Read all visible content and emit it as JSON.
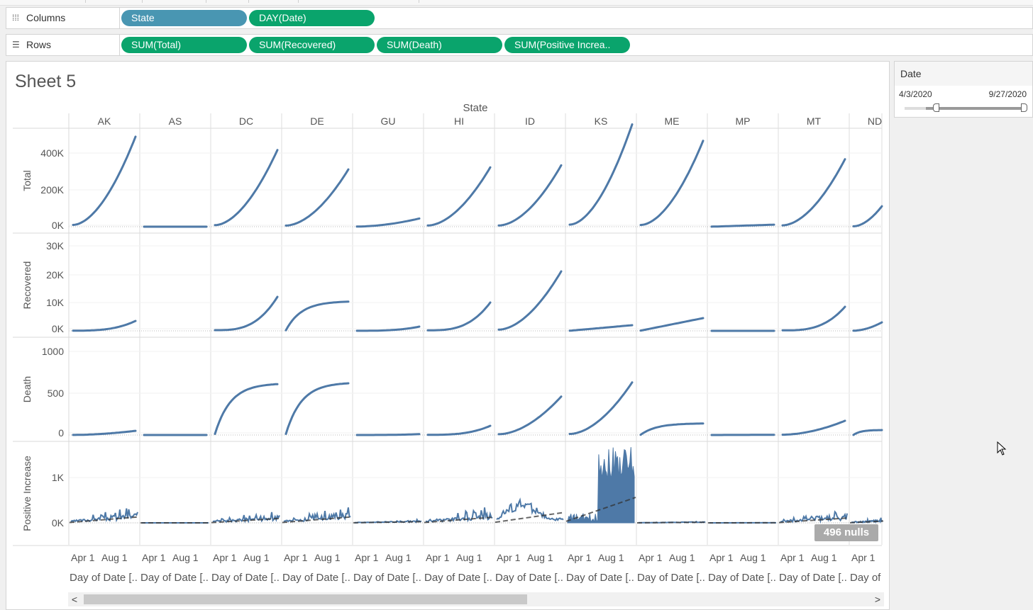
{
  "shelves": {
    "columns": {
      "label": "Columns",
      "icon": "columns-icon",
      "pills": [
        {
          "label": "State",
          "color": "#4996b2"
        },
        {
          "label": "DAY(Date)",
          "color": "#0aa46c"
        }
      ]
    },
    "rows": {
      "label": "Rows",
      "icon": "rows-icon",
      "pills": [
        {
          "label": "SUM(Total)",
          "color": "#0aa46c"
        },
        {
          "label": "SUM(Recovered)",
          "color": "#0aa46c"
        },
        {
          "label": "SUM(Death)",
          "color": "#0aa46c"
        },
        {
          "label": "SUM(Positive Increa..",
          "color": "#0aa46c"
        }
      ]
    }
  },
  "sheet": {
    "title": "Sheet 5",
    "column_header": "State",
    "states": [
      "AK",
      "AS",
      "DC",
      "DE",
      "GU",
      "HI",
      "ID",
      "KS",
      "ME",
      "MP",
      "MT",
      "ND"
    ],
    "x_ticks": [
      "Apr 1",
      "Aug 1"
    ],
    "x_axis_label": "Day of Date [..",
    "x_axis_label_last": "Day of",
    "rows": [
      {
        "label": "Total",
        "ticks": [
          "400K",
          "200K",
          "0K"
        ]
      },
      {
        "label": "Recovered",
        "ticks": [
          "30K",
          "20K",
          "10K",
          "0K"
        ]
      },
      {
        "label": "Death",
        "ticks": [
          "1000",
          "500",
          "0"
        ]
      },
      {
        "label": "Positive Increase",
        "ticks": [
          "1K",
          "0K"
        ]
      }
    ],
    "nulls_badge": "496 nulls",
    "line_color": "#4e79a7",
    "trend_color": "#333333"
  },
  "filter": {
    "title": "Date",
    "min": "4/3/2020",
    "max": "9/27/2020"
  },
  "scrollbar": {
    "left_arrow": "<",
    "right_arrow": ">"
  },
  "chart_data": {
    "type": "line",
    "title": "Sheet 5",
    "facet": "State",
    "x": "Day of Date",
    "x_range": [
      "4/3/2020",
      "9/27/2020"
    ],
    "series": [
      {
        "name": "Total",
        "ylim": [
          0,
          500000
        ],
        "final_values": {
          "AK": 440000,
          "AS": 0,
          "DC": 375000,
          "DE": 280000,
          "GU": 40000,
          "HI": 290000,
          "ID": 300000,
          "KS": 500000,
          "ME": 420000,
          "MP": 10000,
          "MT": 330000,
          "ND": 100000
        }
      },
      {
        "name": "Recovered",
        "ylim": [
          0,
          32000
        ],
        "final_values": {
          "AK": 3500,
          "AS": null,
          "DC": 12000,
          "DE": 10500,
          "GU": 1500,
          "HI": 10000,
          "ID": 21000,
          "KS": 2000,
          "ME": 4500,
          "MP": 0,
          "MT": 8500,
          "ND": 3000
        }
      },
      {
        "name": "Death",
        "ylim": [
          0,
          1100
        ],
        "final_values": {
          "AK": 50,
          "AS": 0,
          "DC": 620,
          "DE": 630,
          "GU": 10,
          "HI": 110,
          "ID": 460,
          "KS": 630,
          "ME": 140,
          "MP": 2,
          "MT": 170,
          "ND": 60
        }
      },
      {
        "name": "Positive Increase",
        "ylim": [
          -250,
          1750
        ],
        "approx_peak": {
          "AK": 400,
          "AS": 0,
          "DC": 300,
          "DE": 400,
          "GU": 80,
          "HI": 380,
          "ID": 700,
          "KS": 1700,
          "ME": 40,
          "MP": 5,
          "MT": 330,
          "ND": 120
        }
      }
    ]
  }
}
